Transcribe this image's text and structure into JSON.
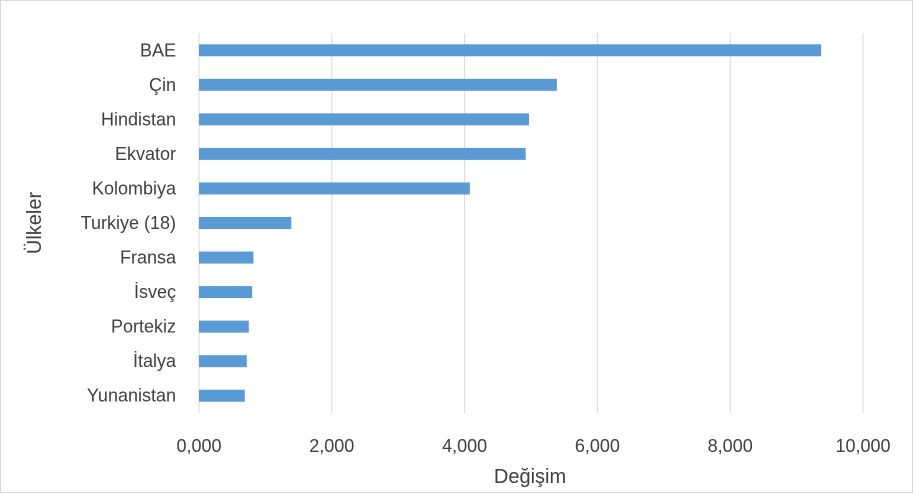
{
  "chart_data": {
    "type": "bar",
    "orientation": "horizontal",
    "categories": [
      "BAE",
      "Çin",
      "Hindistan",
      "Ekvator",
      "Kolombiya",
      "Turkiye (18)",
      "Fransa",
      "İsveç",
      "Portekiz",
      "İtalya",
      "Yunanistan"
    ],
    "values": [
      9.37,
      5.39,
      4.97,
      4.92,
      4.08,
      1.39,
      0.82,
      0.8,
      0.75,
      0.72,
      0.69
    ],
    "xlabel": "Değişim",
    "ylabel": "Ülkeler",
    "xlim": [
      0,
      10
    ],
    "x_ticks": [
      0,
      2,
      4,
      6,
      8,
      10
    ],
    "x_tick_labels": [
      "0,000",
      "2,000",
      "4,000",
      "6,000",
      "8,000",
      "10,000"
    ],
    "grid": true,
    "bar_color": "#5b9bd5",
    "grid_color": "#d9d9d9"
  }
}
